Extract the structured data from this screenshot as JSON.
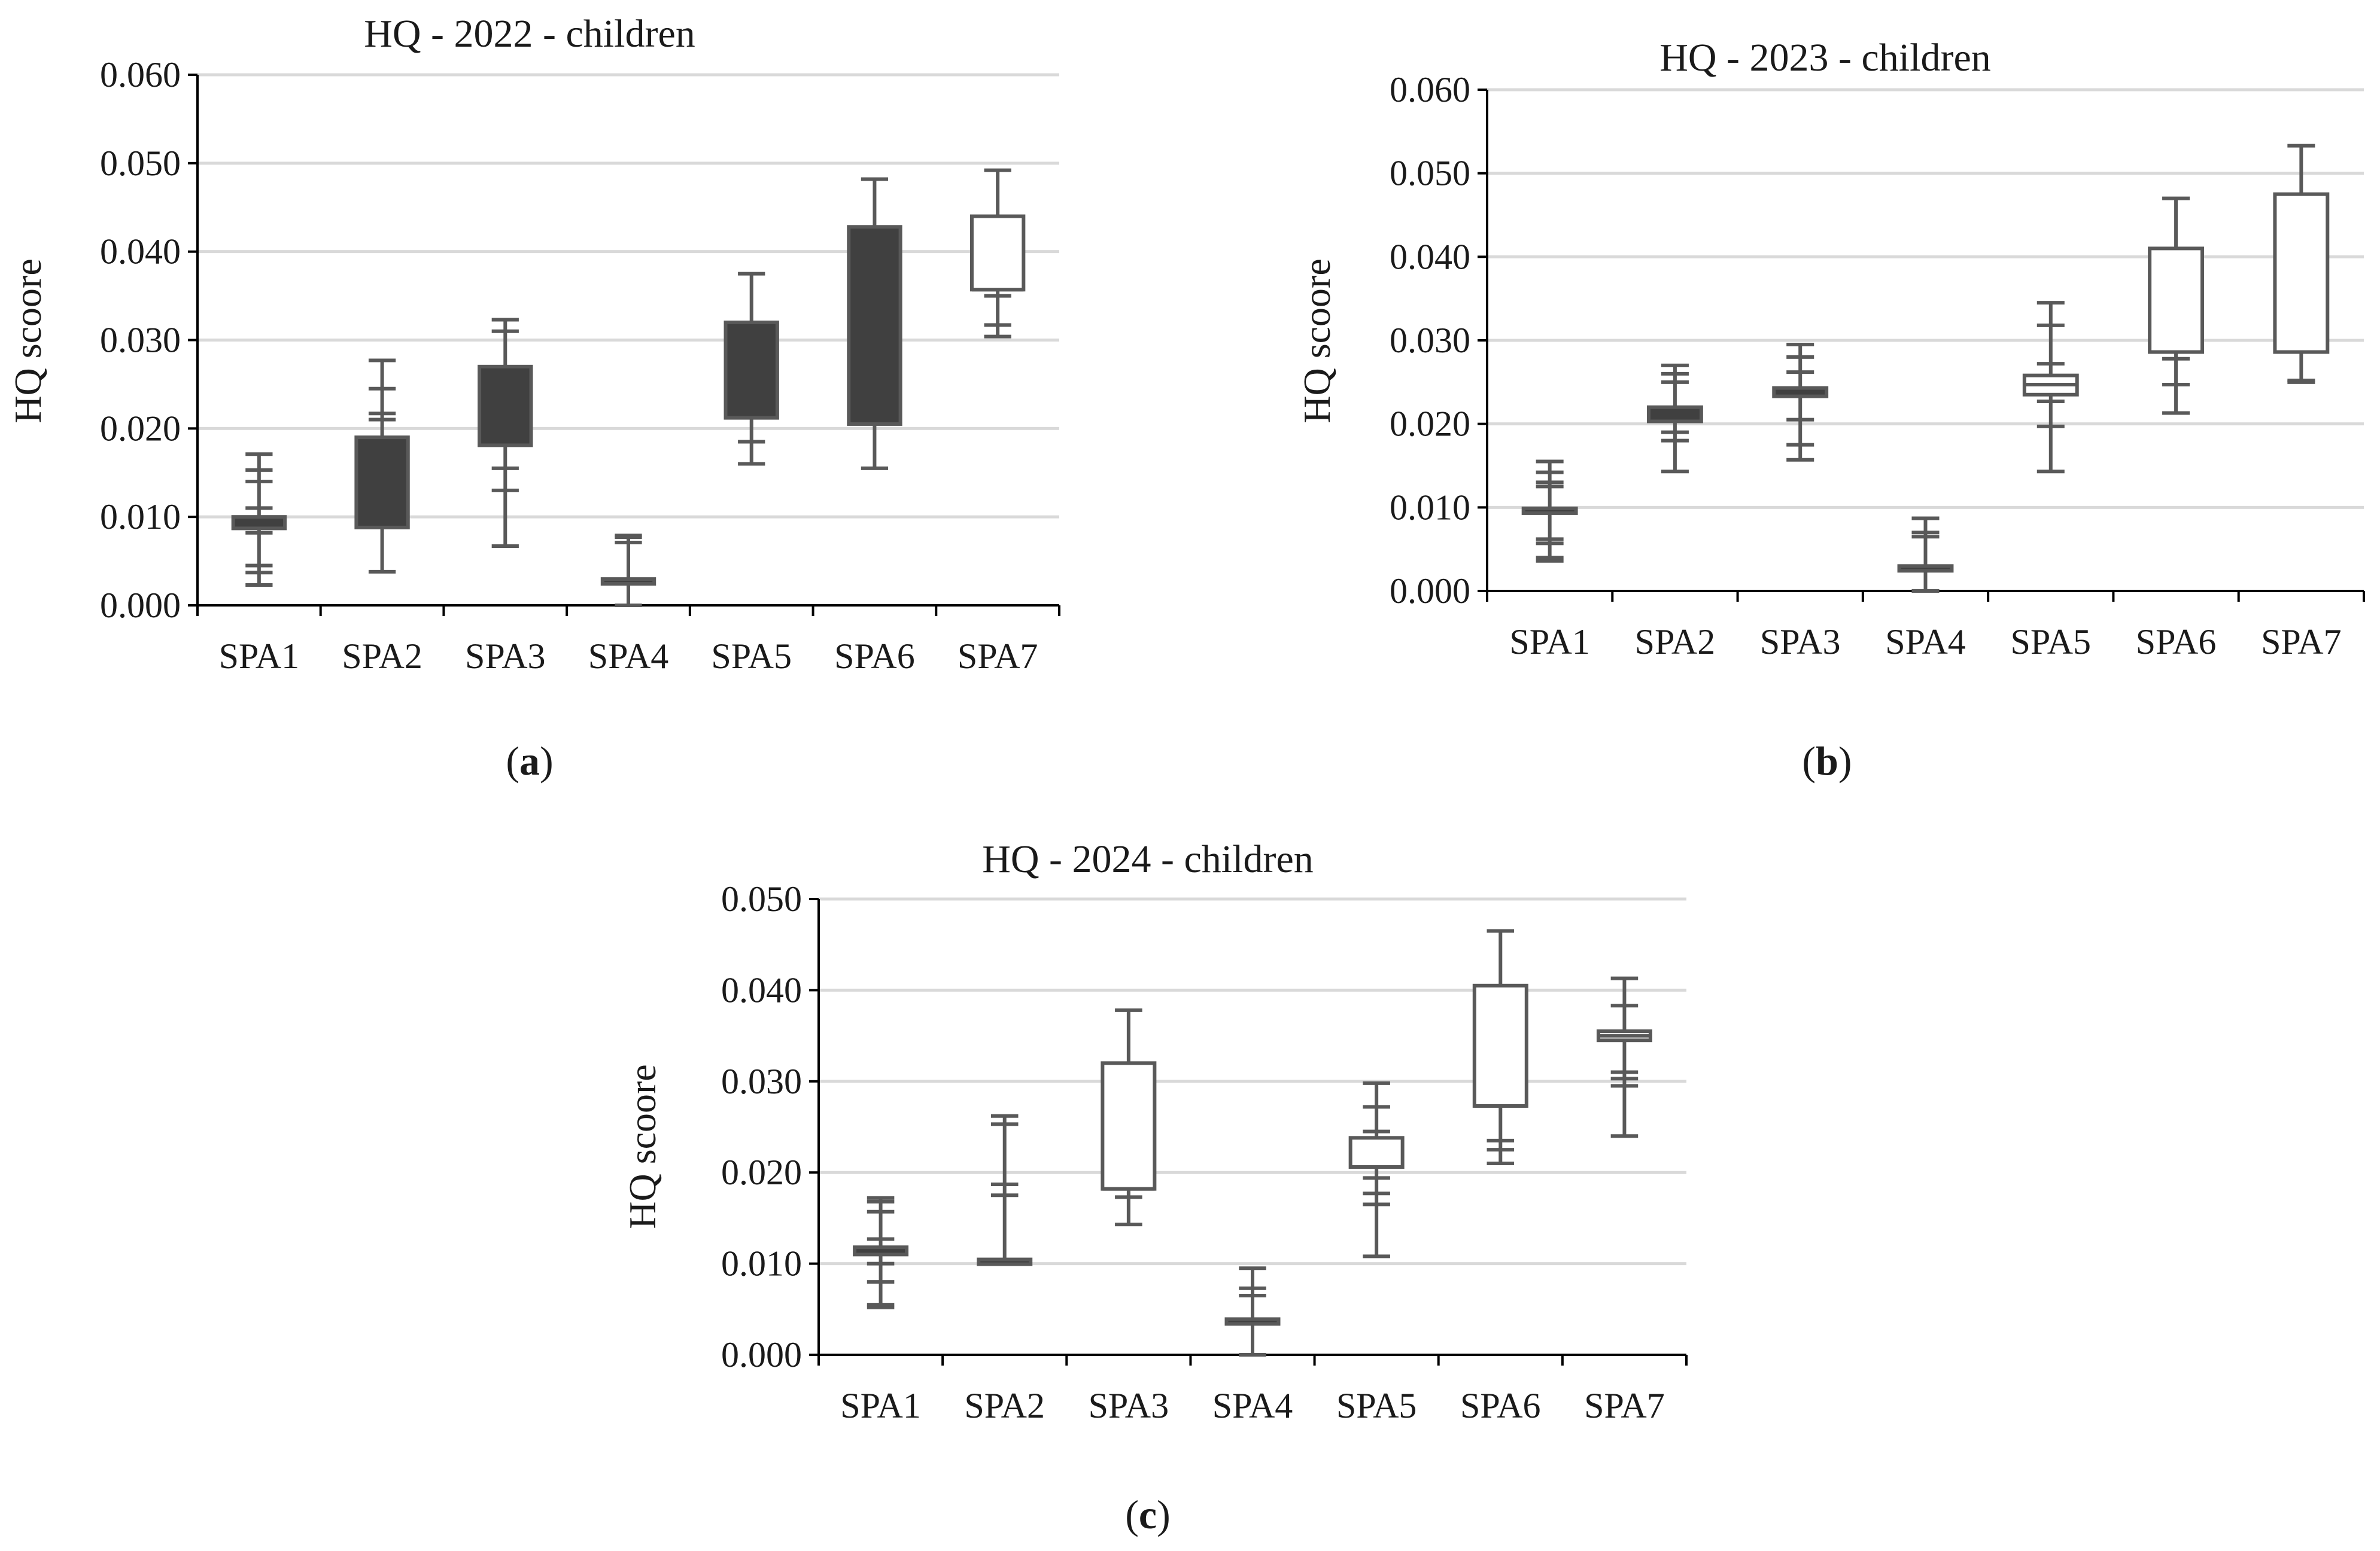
{
  "colors": {
    "box_dark": "#404040",
    "box_light": "#ffffff",
    "line": "#595959",
    "grid": "#d9d9d9",
    "axis": "#000000"
  },
  "chart_data": [
    {
      "type": "box",
      "title": "HQ - 2022 - children",
      "panel_label": "a",
      "ylabel": "HQ  scoore",
      "xlabel": "",
      "grid": true,
      "ylim": [
        0,
        0.06
      ],
      "yticks": [
        "0.000",
        "0.010",
        "0.020",
        "0.030",
        "0.040",
        "0.050",
        "0.060"
      ],
      "categories": [
        "SPA1",
        "SPA2",
        "SPA3",
        "SPA4",
        "SPA5",
        "SPA6",
        "SPA7"
      ],
      "boxes": [
        {
          "min": 0.0023,
          "q1": 0.0087,
          "median": 0.0093,
          "q3": 0.01,
          "max": 0.0171,
          "fill": "dark",
          "ticks": [
            0.0037,
            0.0045,
            0.0082,
            0.011,
            0.014,
            0.0153
          ]
        },
        {
          "min": 0.0038,
          "q1": 0.0088,
          "median": 0.014,
          "q3": 0.019,
          "max": 0.0277,
          "fill": "dark",
          "ticks": [
            0.021,
            0.0217,
            0.0245
          ]
        },
        {
          "min": 0.0067,
          "q1": 0.0181,
          "median": 0.0225,
          "q3": 0.027,
          "max": 0.0323,
          "fill": "dark",
          "ticks": [
            0.013,
            0.0155,
            0.031
          ]
        },
        {
          "min": 0.0,
          "q1": 0.0027,
          "median": 0.0027,
          "q3": 0.0027,
          "max": 0.0079,
          "fill": "dark",
          "ticks": [
            0.0071,
            0.0077
          ]
        },
        {
          "min": 0.016,
          "q1": 0.0212,
          "median": 0.0265,
          "q3": 0.032,
          "max": 0.0375,
          "fill": "dark",
          "ticks": [
            0.0185
          ]
        },
        {
          "min": 0.0155,
          "q1": 0.0205,
          "median": 0.031,
          "q3": 0.0428,
          "max": 0.0482,
          "fill": "dark",
          "ticks": []
        },
        {
          "min": 0.0304,
          "q1": 0.0357,
          "median": 0.0357,
          "q3": 0.044,
          "max": 0.0492,
          "fill": "light",
          "ticks": [
            0.0317,
            0.035
          ]
        }
      ]
    },
    {
      "type": "box",
      "title": "HQ - 2023 - children",
      "panel_label": "b",
      "ylabel": "HQ  scoore",
      "xlabel": "",
      "grid": true,
      "ylim": [
        0,
        0.06
      ],
      "yticks": [
        "0.000",
        "0.010",
        "0.020",
        "0.030",
        "0.040",
        "0.050",
        "0.060"
      ],
      "categories": [
        "SPA1",
        "SPA2",
        "SPA3",
        "SPA4",
        "SPA5",
        "SPA6",
        "SPA7"
      ],
      "boxes": [
        {
          "min": 0.0036,
          "q1": 0.0096,
          "median": 0.0096,
          "q3": 0.0096,
          "max": 0.0155,
          "fill": "dark",
          "ticks": [
            0.004,
            0.0057,
            0.0062,
            0.0125,
            0.013,
            0.0142
          ]
        },
        {
          "min": 0.0143,
          "q1": 0.0203,
          "median": 0.021,
          "q3": 0.022,
          "max": 0.027,
          "fill": "dark",
          "ticks": [
            0.018,
            0.019,
            0.025,
            0.026
          ]
        },
        {
          "min": 0.0157,
          "q1": 0.0233,
          "median": 0.0237,
          "q3": 0.0243,
          "max": 0.0295,
          "fill": "dark",
          "ticks": [
            0.0175,
            0.0205,
            0.0262,
            0.028
          ]
        },
        {
          "min": 0.0,
          "q1": 0.0027,
          "median": 0.0027,
          "q3": 0.0027,
          "max": 0.0087,
          "fill": "dark",
          "ticks": [
            0.0065,
            0.007
          ]
        },
        {
          "min": 0.0143,
          "q1": 0.0235,
          "median": 0.0247,
          "q3": 0.0258,
          "max": 0.0345,
          "fill": "light",
          "ticks": [
            0.0197,
            0.0227,
            0.0272,
            0.0318
          ]
        },
        {
          "min": 0.0213,
          "q1": 0.0286,
          "median": 0.0286,
          "q3": 0.041,
          "max": 0.047,
          "fill": "light",
          "ticks": [
            0.0247,
            0.0278
          ]
        },
        {
          "min": 0.025,
          "q1": 0.0286,
          "median": 0.0286,
          "q3": 0.0475,
          "max": 0.0533,
          "fill": "light",
          "ticks": [
            0.0252
          ]
        }
      ]
    },
    {
      "type": "box",
      "title": "HQ - 2024 - children",
      "panel_label": "c",
      "ylabel": "HQ  scoore",
      "xlabel": "",
      "grid": true,
      "ylim": [
        0,
        0.05
      ],
      "yticks": [
        "0.000",
        "0.010",
        "0.020",
        "0.030",
        "0.040",
        "0.050"
      ],
      "categories": [
        "SPA1",
        "SPA2",
        "SPA3",
        "SPA4",
        "SPA5",
        "SPA6",
        "SPA7"
      ],
      "boxes": [
        {
          "min": 0.0052,
          "q1": 0.011,
          "median": 0.0115,
          "q3": 0.0118,
          "max": 0.0172,
          "fill": "dark",
          "ticks": [
            0.0055,
            0.008,
            0.01,
            0.0127,
            0.0157,
            0.0168
          ]
        },
        {
          "min": 0.0102,
          "q1": 0.0102,
          "median": 0.0102,
          "q3": 0.0102,
          "max": 0.0262,
          "fill": "dark",
          "ticks": [
            0.0175,
            0.0187,
            0.0253
          ]
        },
        {
          "min": 0.0143,
          "q1": 0.0182,
          "median": 0.0182,
          "q3": 0.032,
          "max": 0.0378,
          "fill": "light",
          "ticks": [
            0.0173
          ]
        },
        {
          "min": 0.0,
          "q1": 0.0035,
          "median": 0.0036,
          "q3": 0.0038,
          "max": 0.0095,
          "fill": "dark",
          "ticks": [
            0.0065,
            0.0073
          ]
        },
        {
          "min": 0.0108,
          "q1": 0.0206,
          "median": 0.0206,
          "q3": 0.0238,
          "max": 0.0298,
          "fill": "light",
          "ticks": [
            0.0165,
            0.0177,
            0.0194,
            0.0245,
            0.0272
          ]
        },
        {
          "min": 0.021,
          "q1": 0.0273,
          "median": 0.0273,
          "q3": 0.0405,
          "max": 0.0465,
          "fill": "light",
          "ticks": [
            0.0225,
            0.0235
          ]
        },
        {
          "min": 0.024,
          "q1": 0.0345,
          "median": 0.035,
          "q3": 0.0355,
          "max": 0.0413,
          "fill": "light",
          "ticks": [
            0.0295,
            0.0303,
            0.031,
            0.0383
          ]
        }
      ]
    }
  ]
}
